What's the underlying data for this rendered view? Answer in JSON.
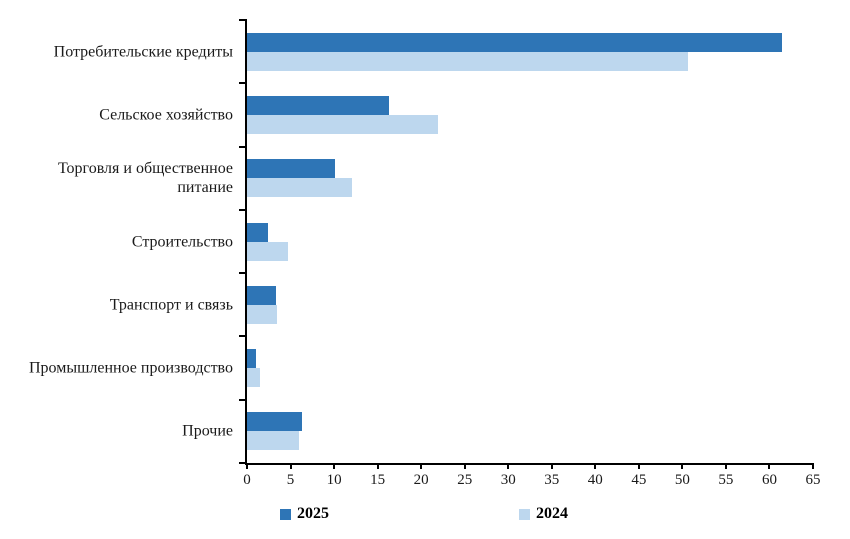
{
  "colors": {
    "series_2025": "#2E75B6",
    "series_2024": "#BDD7EE",
    "axis": "#000000",
    "background": "#FFFFFF"
  },
  "legend": [
    {
      "label": "2025",
      "color": "#2E75B6"
    },
    {
      "label": "2024",
      "color": "#BDD7EE"
    }
  ],
  "chart_data": {
    "type": "bar",
    "orientation": "horizontal",
    "title": "",
    "xlabel": "",
    "ylabel": "",
    "categories": [
      "Потребительские  кредиты",
      "Сельское хозяйство",
      "Торговля и общественное питание",
      "Строительство",
      "Транспорт и связь",
      "Промышленное производство",
      "Прочие"
    ],
    "series": [
      {
        "name": "2025",
        "color": "#2E75B6",
        "values": [
          61.4,
          16.3,
          10.1,
          2.4,
          3.3,
          1.0,
          6.3
        ]
      },
      {
        "name": "2024",
        "color": "#BDD7EE",
        "values": [
          50.7,
          21.9,
          12.1,
          4.7,
          3.4,
          1.5,
          6.0
        ]
      }
    ],
    "xlim": [
      0,
      65
    ],
    "xticks": [
      0,
      5,
      10,
      15,
      20,
      25,
      30,
      35,
      40,
      45,
      50,
      55,
      60,
      65
    ],
    "grid": false,
    "legend_position": "bottom"
  }
}
